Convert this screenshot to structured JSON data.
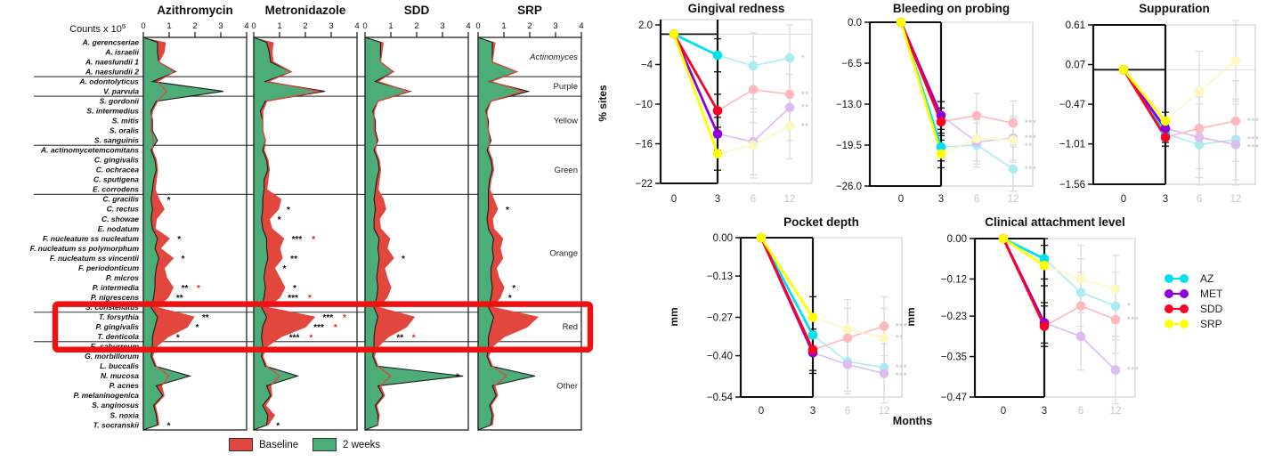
{
  "months_label": "Months",
  "treatments": [
    {
      "name": "AZ",
      "color": "#00E1F0",
      "faded": "#ABEBF2"
    },
    {
      "name": "MET",
      "color": "#8F00D8",
      "faded": "#DDBCF2"
    },
    {
      "name": "SDD",
      "color": "#FF0024",
      "faded": "#FFB9BE"
    },
    {
      "name": "SRP",
      "color": "#FFFF00",
      "faded": "#FCF8C0"
    }
  ],
  "chart_data": [
    {
      "id": "microbial-seascape",
      "type": "area",
      "x_axis_label": "Counts x 10",
      "x_axis_exponent": "5",
      "x_ticks": [
        "0",
        "1",
        "2",
        "3",
        "4"
      ],
      "xlim": [
        0,
        4
      ],
      "color_baseline": "#E2473D",
      "color_two_weeks": "#4CAD78",
      "legend": [
        {
          "label": "Baseline",
          "color": "#E2473D"
        },
        {
          "label": "2 weeks",
          "color": "#4CAD78"
        }
      ],
      "highlight": {
        "rows_from": 27,
        "rows_to": 31,
        "color": "#ED1111"
      },
      "species": [
        "A. gerencseriae",
        "A. israelii",
        "A. naeslundii 1",
        "A. naeslundii 2",
        "A. odontolyticus",
        "V. parvula",
        "S. gordonii",
        "S. intermedius",
        "S. mitis",
        "S. oralis",
        "S. sanguinis",
        "A. actinomycetemcomitans",
        "C. gingivalis",
        "C. ochracea",
        "C. sputigena",
        "E. corrodens",
        "C. gracilis",
        "C. rectus",
        "C. showae",
        "E. nodatum",
        "F. nucleatum ss nucleatum",
        "F. nucleatum ss polymorphum",
        "F. nucleatum ss vincentii",
        "F. periodonticum",
        "P. micros",
        "P. intermedia",
        "P. nigrescens",
        "S. constellatus",
        "T. forsythia",
        "P. gingivalis",
        "T. denticola",
        "E. saburreum",
        "G. morbillorum",
        "L. buccalis",
        "N. mucosa",
        "P. acnes",
        "P. melaninogenica",
        "S. anginosus",
        "S. noxia",
        "T. socranskii"
      ],
      "groups": [
        {
          "label": "Actinomyces",
          "from": 0,
          "to": 3,
          "italic": true
        },
        {
          "label": "Purple",
          "from": 4,
          "to": 5,
          "italic": false
        },
        {
          "label": "Yellow",
          "from": 6,
          "to": 10,
          "italic": false
        },
        {
          "label": "Green",
          "from": 11,
          "to": 15,
          "italic": false
        },
        {
          "label": "Orange",
          "from": 16,
          "to": 27,
          "italic": false
        },
        {
          "label": "Red",
          "from": 28,
          "to": 30,
          "italic": false
        },
        {
          "label": "Other",
          "from": 31,
          "to": 39,
          "italic": false
        }
      ],
      "columns": [
        {
          "title": "Azithromycin",
          "baseline": [
            0.85,
            0.8,
            0.6,
            1.2,
            0.55,
            0.9,
            0.55,
            0.35,
            0.3,
            0.3,
            0.4,
            0.35,
            0.5,
            0.55,
            0.5,
            0.45,
            0.6,
            0.8,
            0.5,
            0.45,
            1.0,
            0.65,
            1.15,
            0.8,
            0.9,
            1.15,
            0.95,
            0.5,
            1.95,
            1.7,
            0.95,
            0.5,
            0.35,
            0.5,
            1.0,
            0.7,
            0.8,
            0.45,
            0.55,
            0.6
          ],
          "two_weeks": [
            0.55,
            0.55,
            0.6,
            1.25,
            0.35,
            3.1,
            0.5,
            0.3,
            0.35,
            0.35,
            0.55,
            0.3,
            0.45,
            0.5,
            0.4,
            0.35,
            0.3,
            0.35,
            0.3,
            0.35,
            0.55,
            0.45,
            0.6,
            0.5,
            0.45,
            0.45,
            0.4,
            0.3,
            0.55,
            0.45,
            0.35,
            0.35,
            0.3,
            0.45,
            1.8,
            0.5,
            0.75,
            0.4,
            0.5,
            0.55
          ],
          "sig": [
            {
              "row": 16,
              "stars": "*",
              "red": false
            },
            {
              "row": 20,
              "stars": "*",
              "red": false
            },
            {
              "row": 22,
              "stars": "*",
              "red": false
            },
            {
              "row": 25,
              "stars": "**",
              "red": true
            },
            {
              "row": 26,
              "stars": "**",
              "red": false
            },
            {
              "row": 28,
              "stars": "**",
              "red": false
            },
            {
              "row": 29,
              "stars": "*",
              "red": false
            },
            {
              "row": 30,
              "stars": "*",
              "red": false
            },
            {
              "row": 39,
              "stars": "*",
              "red": false
            }
          ]
        },
        {
          "title": "Metronidazole",
          "baseline": [
            0.75,
            0.7,
            0.75,
            1.45,
            0.55,
            2.55,
            0.5,
            0.35,
            0.35,
            0.35,
            0.45,
            0.4,
            0.55,
            0.6,
            0.55,
            0.5,
            1.05,
            0.95,
            0.6,
            0.7,
            1.15,
            1.0,
            1.1,
            0.8,
            1.0,
            1.2,
            1.0,
            0.5,
            2.35,
            2.0,
            1.05,
            0.5,
            0.35,
            0.5,
            1.0,
            0.65,
            0.7,
            0.45,
            0.8,
            0.55
          ],
          "two_weeks": [
            0.5,
            0.6,
            0.65,
            1.45,
            0.45,
            2.75,
            0.45,
            0.25,
            0.35,
            0.35,
            0.45,
            0.35,
            0.5,
            0.55,
            0.4,
            0.4,
            0.35,
            0.35,
            0.3,
            0.35,
            0.5,
            0.5,
            0.55,
            0.45,
            0.4,
            0.45,
            0.4,
            0.3,
            0.5,
            0.35,
            0.3,
            0.35,
            0.3,
            0.45,
            1.7,
            0.5,
            0.65,
            0.35,
            0.55,
            0.5
          ],
          "sig": [
            {
              "row": 17,
              "stars": "*",
              "red": false
            },
            {
              "row": 18,
              "stars": "*",
              "red": false
            },
            {
              "row": 20,
              "stars": "***",
              "red": true
            },
            {
              "row": 22,
              "stars": "**",
              "red": false
            },
            {
              "row": 23,
              "stars": "*",
              "red": false
            },
            {
              "row": 25,
              "stars": "*",
              "red": false
            },
            {
              "row": 26,
              "stars": "***",
              "red": true
            },
            {
              "row": 28,
              "stars": "***",
              "red": true
            },
            {
              "row": 29,
              "stars": "***",
              "red": true
            },
            {
              "row": 30,
              "stars": "***",
              "red": true
            },
            {
              "row": 39,
              "stars": "*",
              "red": false
            }
          ]
        },
        {
          "title": "SDD",
          "baseline": [
            0.7,
            0.65,
            0.6,
            1.1,
            0.5,
            1.7,
            0.5,
            0.35,
            0.35,
            0.35,
            0.45,
            0.4,
            0.55,
            0.6,
            0.55,
            0.5,
            0.7,
            0.8,
            0.55,
            0.6,
            0.95,
            0.85,
            1.1,
            0.75,
            0.85,
            1.0,
            0.85,
            0.5,
            1.9,
            1.6,
            0.9,
            0.5,
            0.35,
            0.5,
            1.0,
            0.6,
            0.75,
            0.45,
            0.55,
            0.5
          ],
          "two_weeks": [
            0.6,
            0.6,
            0.6,
            1.1,
            0.4,
            1.75,
            0.5,
            0.3,
            0.4,
            0.4,
            0.5,
            0.35,
            0.5,
            0.55,
            0.45,
            0.4,
            0.35,
            0.4,
            0.35,
            0.35,
            0.55,
            0.5,
            0.55,
            0.5,
            0.45,
            0.5,
            0.45,
            0.35,
            0.5,
            0.4,
            0.35,
            0.35,
            0.3,
            0.45,
            3.8,
            0.5,
            0.7,
            0.4,
            0.5,
            0.5
          ],
          "sig": [
            {
              "row": 22,
              "stars": "*",
              "red": false
            },
            {
              "row": 30,
              "stars": "**",
              "red": true
            },
            {
              "row": 34,
              "stars": "*",
              "red": false
            }
          ]
        },
        {
          "title": "SRP",
          "baseline": [
            0.65,
            0.6,
            0.55,
            1.5,
            0.5,
            1.75,
            0.5,
            0.35,
            0.35,
            0.4,
            0.45,
            0.4,
            0.55,
            0.6,
            0.5,
            0.45,
            0.6,
            0.75,
            0.55,
            0.6,
            0.95,
            0.85,
            0.95,
            0.7,
            0.8,
            1.0,
            0.85,
            0.55,
            2.3,
            1.9,
            1.0,
            0.55,
            0.4,
            0.55,
            1.1,
            0.65,
            0.75,
            0.5,
            0.6,
            0.55
          ],
          "two_weeks": [
            0.55,
            0.55,
            0.55,
            1.5,
            0.45,
            1.95,
            0.5,
            0.3,
            0.4,
            0.4,
            0.5,
            0.35,
            0.5,
            0.55,
            0.45,
            0.4,
            0.4,
            0.4,
            0.35,
            0.4,
            0.6,
            0.55,
            0.6,
            0.5,
            0.5,
            0.55,
            0.5,
            0.4,
            0.6,
            0.5,
            0.4,
            0.4,
            0.35,
            0.5,
            2.2,
            0.55,
            0.7,
            0.45,
            0.55,
            0.5
          ],
          "sig": [
            {
              "row": 17,
              "stars": "*",
              "red": false
            },
            {
              "row": 25,
              "stars": "*",
              "red": false
            },
            {
              "row": 26,
              "stars": "*",
              "red": false
            }
          ]
        }
      ]
    },
    {
      "type": "line",
      "title": "Gingival redness",
      "ylabel": "% sites",
      "x": [
        "0",
        "3",
        "6",
        "12"
      ],
      "ytick_labels": [
        "2.0",
        "−4",
        "−10",
        "−16",
        "−22"
      ],
      "ytick_values": [
        2,
        -4,
        -10,
        -16,
        -22
      ],
      "err_black": 2.5,
      "err_gray": 5,
      "series": [
        {
          "name": "AZ",
          "values": [
            0.6,
            -2.6,
            -4.2,
            -3.0
          ],
          "sig": "*"
        },
        {
          "name": "MET",
          "values": [
            0.6,
            -14.5,
            -15.7,
            -10.5
          ],
          "sig": "**"
        },
        {
          "name": "SDD",
          "values": [
            0.6,
            -11.0,
            -7.8,
            -8.5
          ],
          "sig": "**"
        },
        {
          "name": "SRP",
          "values": [
            0.6,
            -17.5,
            -16.2,
            -13.3
          ],
          "sig": "**"
        }
      ]
    },
    {
      "type": "line",
      "title": "Bleeding on probing",
      "ylabel": "",
      "x": [
        "0",
        "3",
        "6",
        "12"
      ],
      "ytick_labels": [
        "0.0",
        "−6.5",
        "−13.0",
        "−19.5",
        "−26.0"
      ],
      "ytick_values": [
        0,
        -6.5,
        -13,
        -19.5,
        -26
      ],
      "err_black": 2.2,
      "err_gray": 3.5,
      "series": [
        {
          "name": "AZ",
          "values": [
            0,
            -19.8,
            -19.5,
            -23.3
          ],
          "sig": "***"
        },
        {
          "name": "MET",
          "values": [
            0,
            -14.8,
            -19.0,
            -18.4
          ],
          "sig": "***"
        },
        {
          "name": "SDD",
          "values": [
            0,
            -15.8,
            -14.8,
            -16.0
          ],
          "sig": "***"
        },
        {
          "name": "SRP",
          "values": [
            0,
            -20.9,
            -18.5,
            -18.7
          ],
          "sig": "**"
        }
      ]
    },
    {
      "type": "line",
      "title": "Suppuration",
      "ylabel": "",
      "x": [
        "0",
        "3",
        "6",
        "12"
      ],
      "ytick_labels": [
        "0.61",
        "0.07",
        "−0.47",
        "−1.01",
        "−1.56"
      ],
      "ytick_values": [
        0.61,
        0.07,
        -0.47,
        -1.01,
        -1.56
      ],
      "err_black": 0.12,
      "err_gray": 0.55,
      "series": [
        {
          "name": "AZ",
          "values": [
            0,
            -0.87,
            -1.02,
            -0.95
          ],
          "sig": "***"
        },
        {
          "name": "MET",
          "values": [
            0,
            -0.8,
            -0.92,
            -1.02
          ],
          "sig": "***"
        },
        {
          "name": "SDD",
          "values": [
            0,
            -0.92,
            -0.8,
            -0.7
          ],
          "sig": "***"
        },
        {
          "name": "SRP",
          "values": [
            0,
            -0.7,
            -0.3,
            0.12
          ],
          "sig": ""
        }
      ]
    },
    {
      "type": "line",
      "title": "Pocket depth",
      "ylabel": "mm",
      "x": [
        "0",
        "3",
        "6",
        "12"
      ],
      "ytick_labels": [
        "0.00",
        "−0.13",
        "−0.27",
        "−0.40",
        "−0.54"
      ],
      "ytick_values": [
        0,
        -0.13,
        -0.27,
        -0.4,
        -0.54
      ],
      "err_black": 0.07,
      "err_gray": 0.1,
      "series": [
        {
          "name": "AZ",
          "values": [
            0,
            -0.33,
            -0.42,
            -0.44
          ],
          "sig": "***"
        },
        {
          "name": "MET",
          "values": [
            0,
            -0.39,
            -0.43,
            -0.46
          ],
          "sig": "***"
        },
        {
          "name": "SDD",
          "values": [
            0,
            -0.38,
            -0.34,
            -0.3
          ],
          "sig": "***"
        },
        {
          "name": "SRP",
          "values": [
            0,
            -0.27,
            -0.31,
            -0.34
          ],
          "sig": "**"
        }
      ]
    },
    {
      "type": "line",
      "title": "Clinical attachment level",
      "ylabel": "mm",
      "x": [
        "0",
        "3",
        "6",
        "12"
      ],
      "ytick_labels": [
        "0.00",
        "−0.12",
        "−0.23",
        "−0.35",
        "−0.47"
      ],
      "ytick_values": [
        0,
        -0.12,
        -0.23,
        -0.35,
        -0.47
      ],
      "err_black": 0.06,
      "err_gray": 0.1,
      "series": [
        {
          "name": "AZ",
          "values": [
            0,
            -0.06,
            -0.16,
            -0.2
          ],
          "sig": "*"
        },
        {
          "name": "MET",
          "values": [
            0,
            -0.25,
            -0.29,
            -0.39
          ],
          "sig": "***"
        },
        {
          "name": "SDD",
          "values": [
            0,
            -0.26,
            -0.2,
            -0.24
          ],
          "sig": "***"
        },
        {
          "name": "SRP",
          "values": [
            0,
            -0.08,
            -0.12,
            -0.15
          ],
          "sig": ""
        }
      ]
    }
  ]
}
